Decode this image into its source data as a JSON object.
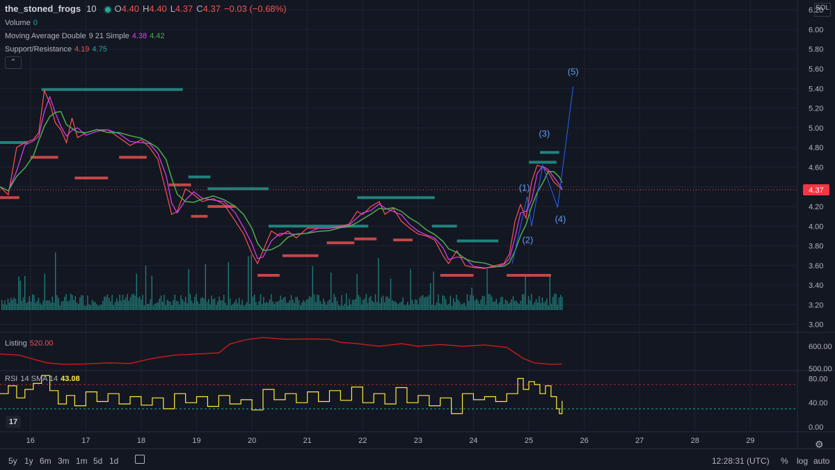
{
  "header": {
    "symbol": "the_stoned_frogs",
    "interval": "10",
    "ohlc": [
      {
        "k": "O",
        "v": "4.40"
      },
      {
        "k": "H",
        "v": "4.40"
      },
      {
        "k": "L",
        "v": "4.37"
      },
      {
        "k": "C",
        "v": "4.37"
      }
    ],
    "change": "−0.03 (−0.68%)",
    "currency": "SOL"
  },
  "indicators": {
    "volume_label": "Volume",
    "volume_value": "0",
    "ma_label": "Moving Average Double",
    "ma_params": "9 21 Simple",
    "ma_value1": "4.38",
    "ma_value2": "4.42",
    "sr_label": "Support/Resistance",
    "sr_value1": "4.19",
    "sr_value2": "4.75",
    "listing_label": "Listing",
    "listing_value": "520.00",
    "rsi_label": "RSI",
    "rsi_params": "14 SMA 14",
    "rsi_value": "43.08"
  },
  "colors": {
    "bg": "#131722",
    "grid": "#1f2330",
    "price": "#ff5252",
    "ma_fast": "#e040fb",
    "ma_slow": "#4caf50",
    "resistance": "#26a69a",
    "support": "#ef5350",
    "volume": "#26a69a",
    "listing": "#b71c1c",
    "rsi": "#ffeb3b",
    "wave": "#2962ff",
    "wave_label": "#5b9cf6",
    "axis_text": "#b2b5be"
  },
  "bottombar": {
    "ranges": [
      "5y",
      "1y",
      "6m",
      "3m",
      "1m",
      "5d",
      "1d"
    ],
    "time": "12:28:31 (UTC)",
    "percent": "%",
    "log": "log",
    "auto": "auto"
  },
  "chart_data": [
    {
      "type": "line",
      "name": "price",
      "x_ticks": [
        "16",
        "17",
        "18",
        "19",
        "20",
        "21",
        "22",
        "23",
        "24",
        "25",
        "26",
        "27",
        "28",
        "29"
      ],
      "x_range": [
        15.45,
        29.85
      ],
      "ylim": [
        2.92,
        6.3
      ],
      "y_ticks": [
        "6.20",
        "6.00",
        "5.80",
        "5.60",
        "5.40",
        "5.20",
        "5.00",
        "4.80",
        "4.60",
        "4.40",
        "4.20",
        "4.00",
        "3.80",
        "3.60",
        "3.40",
        "3.20",
        "3.00"
      ],
      "last_price": "4.37",
      "series": [
        {
          "x": 15.45,
          "y": 4.4
        },
        {
          "x": 15.6,
          "y": 4.32
        },
        {
          "x": 15.75,
          "y": 4.8
        },
        {
          "x": 15.9,
          "y": 4.85
        },
        {
          "x": 16.05,
          "y": 4.88
        },
        {
          "x": 16.15,
          "y": 4.95
        },
        {
          "x": 16.25,
          "y": 5.38
        },
        {
          "x": 16.35,
          "y": 5.25
        },
        {
          "x": 16.45,
          "y": 5.05
        },
        {
          "x": 16.55,
          "y": 4.98
        },
        {
          "x": 16.65,
          "y": 4.85
        },
        {
          "x": 16.75,
          "y": 5.1
        },
        {
          "x": 16.85,
          "y": 4.9
        },
        {
          "x": 17.0,
          "y": 4.95
        },
        {
          "x": 17.2,
          "y": 4.98
        },
        {
          "x": 17.4,
          "y": 4.98
        },
        {
          "x": 17.6,
          "y": 4.9
        },
        {
          "x": 17.8,
          "y": 4.82
        },
        {
          "x": 18.0,
          "y": 4.88
        },
        {
          "x": 18.15,
          "y": 4.8
        },
        {
          "x": 18.3,
          "y": 4.68
        },
        {
          "x": 18.45,
          "y": 4.35
        },
        {
          "x": 18.55,
          "y": 4.12
        },
        {
          "x": 18.65,
          "y": 4.15
        },
        {
          "x": 18.8,
          "y": 4.38
        },
        {
          "x": 18.95,
          "y": 4.32
        },
        {
          "x": 19.1,
          "y": 4.25
        },
        {
          "x": 19.3,
          "y": 4.28
        },
        {
          "x": 19.5,
          "y": 4.22
        },
        {
          "x": 19.7,
          "y": 4.05
        },
        {
          "x": 19.85,
          "y": 3.92
        },
        {
          "x": 20.0,
          "y": 3.72
        },
        {
          "x": 20.1,
          "y": 3.62
        },
        {
          "x": 20.2,
          "y": 3.75
        },
        {
          "x": 20.35,
          "y": 3.95
        },
        {
          "x": 20.5,
          "y": 3.9
        },
        {
          "x": 20.65,
          "y": 3.95
        },
        {
          "x": 20.8,
          "y": 3.88
        },
        {
          "x": 21.0,
          "y": 3.98
        },
        {
          "x": 21.2,
          "y": 3.98
        },
        {
          "x": 21.4,
          "y": 3.98
        },
        {
          "x": 21.6,
          "y": 4.0
        },
        {
          "x": 21.75,
          "y": 4.02
        },
        {
          "x": 21.9,
          "y": 4.15
        },
        {
          "x": 22.0,
          "y": 4.12
        },
        {
          "x": 22.15,
          "y": 4.2
        },
        {
          "x": 22.3,
          "y": 4.25
        },
        {
          "x": 22.4,
          "y": 4.12
        },
        {
          "x": 22.55,
          "y": 4.18
        },
        {
          "x": 22.7,
          "y": 4.05
        },
        {
          "x": 22.85,
          "y": 3.98
        },
        {
          "x": 23.0,
          "y": 3.92
        },
        {
          "x": 23.15,
          "y": 3.9
        },
        {
          "x": 23.3,
          "y": 3.86
        },
        {
          "x": 23.45,
          "y": 3.7
        },
        {
          "x": 23.55,
          "y": 3.62
        },
        {
          "x": 23.7,
          "y": 3.75
        },
        {
          "x": 23.85,
          "y": 3.6
        },
        {
          "x": 24.0,
          "y": 3.58
        },
        {
          "x": 24.2,
          "y": 3.57
        },
        {
          "x": 24.4,
          "y": 3.6
        },
        {
          "x": 24.55,
          "y": 3.62
        },
        {
          "x": 24.65,
          "y": 3.72
        },
        {
          "x": 24.75,
          "y": 4.05
        },
        {
          "x": 24.85,
          "y": 4.22
        },
        {
          "x": 24.95,
          "y": 4.08
        },
        {
          "x": 25.05,
          "y": 4.45
        },
        {
          "x": 25.15,
          "y": 4.62
        },
        {
          "x": 25.25,
          "y": 4.6
        },
        {
          "x": 25.35,
          "y": 4.55
        },
        {
          "x": 25.45,
          "y": 4.45
        },
        {
          "x": 25.55,
          "y": 4.4
        },
        {
          "x": 25.6,
          "y": 4.37
        }
      ],
      "resistance_levels": [
        {
          "x1": 15.45,
          "x2": 15.95,
          "y": 4.85
        },
        {
          "x1": 16.2,
          "x2": 18.75,
          "y": 5.39
        },
        {
          "x1": 19.2,
          "x2": 20.3,
          "y": 4.38
        },
        {
          "x1": 18.85,
          "x2": 19.25,
          "y": 4.5
        },
        {
          "x1": 20.3,
          "x2": 22.1,
          "y": 4.0
        },
        {
          "x1": 21.9,
          "x2": 23.3,
          "y": 4.29
        },
        {
          "x1": 23.25,
          "x2": 23.7,
          "y": 4.0
        },
        {
          "x1": 23.7,
          "x2": 24.45,
          "y": 3.85
        },
        {
          "x1": 25.0,
          "x2": 25.5,
          "y": 4.65
        },
        {
          "x1": 25.2,
          "x2": 25.55,
          "y": 4.75
        }
      ],
      "support_levels": [
        {
          "x1": 15.45,
          "x2": 15.8,
          "y": 4.29
        },
        {
          "x1": 16.0,
          "x2": 16.5,
          "y": 4.7
        },
        {
          "x1": 16.8,
          "x2": 17.4,
          "y": 4.49
        },
        {
          "x1": 17.6,
          "x2": 18.1,
          "y": 4.7
        },
        {
          "x1": 18.5,
          "x2": 18.9,
          "y": 4.42
        },
        {
          "x1": 18.9,
          "x2": 19.2,
          "y": 4.1
        },
        {
          "x1": 19.2,
          "x2": 19.7,
          "y": 4.2
        },
        {
          "x1": 20.1,
          "x2": 20.5,
          "y": 3.5
        },
        {
          "x1": 20.55,
          "x2": 21.2,
          "y": 3.7
        },
        {
          "x1": 21.35,
          "x2": 21.85,
          "y": 3.83
        },
        {
          "x1": 21.85,
          "x2": 22.25,
          "y": 3.87
        },
        {
          "x1": 22.55,
          "x2": 22.9,
          "y": 3.86
        },
        {
          "x1": 23.4,
          "x2": 24.0,
          "y": 3.5
        },
        {
          "x1": 24.6,
          "x2": 25.4,
          "y": 3.5
        }
      ],
      "elliott_wave": {
        "points": [
          {
            "x": 24.7,
            "y": 3.62
          },
          {
            "x": 24.97,
            "y": 4.3
          },
          {
            "x": 25.05,
            "y": 4.0
          },
          {
            "x": 25.25,
            "y": 4.62
          },
          {
            "x": 25.52,
            "y": 4.19
          },
          {
            "x": 25.8,
            "y": 5.42
          }
        ],
        "labels": [
          {
            "text": "(1)",
            "x": 24.92,
            "y": 4.36
          },
          {
            "text": "(2)",
            "x": 24.98,
            "y": 3.83
          },
          {
            "text": "(3)",
            "x": 25.28,
            "y": 4.91
          },
          {
            "text": "(4)",
            "x": 25.57,
            "y": 4.04
          },
          {
            "text": "(5)",
            "x": 25.8,
            "y": 5.54
          }
        ]
      }
    },
    {
      "type": "bar",
      "name": "volume",
      "note": "histogram at base of price pane"
    },
    {
      "type": "line",
      "name": "Listing",
      "y_ticks": [
        "600.00",
        "500.00"
      ],
      "ylim": [
        490,
        660
      ],
      "series": [
        {
          "x": 15.45,
          "y": 565
        },
        {
          "x": 15.8,
          "y": 560
        },
        {
          "x": 16.0,
          "y": 545
        },
        {
          "x": 16.3,
          "y": 525
        },
        {
          "x": 16.6,
          "y": 518
        },
        {
          "x": 17.0,
          "y": 520
        },
        {
          "x": 17.4,
          "y": 525
        },
        {
          "x": 17.8,
          "y": 522
        },
        {
          "x": 18.2,
          "y": 545
        },
        {
          "x": 18.6,
          "y": 560
        },
        {
          "x": 19.0,
          "y": 565
        },
        {
          "x": 19.4,
          "y": 570
        },
        {
          "x": 19.6,
          "y": 610
        },
        {
          "x": 19.9,
          "y": 630
        },
        {
          "x": 20.2,
          "y": 640
        },
        {
          "x": 20.6,
          "y": 632
        },
        {
          "x": 21.0,
          "y": 633
        },
        {
          "x": 21.4,
          "y": 632
        },
        {
          "x": 21.6,
          "y": 618
        },
        {
          "x": 21.9,
          "y": 612
        },
        {
          "x": 22.3,
          "y": 600
        },
        {
          "x": 22.7,
          "y": 612
        },
        {
          "x": 23.0,
          "y": 600
        },
        {
          "x": 23.4,
          "y": 608
        },
        {
          "x": 23.8,
          "y": 600
        },
        {
          "x": 24.2,
          "y": 606
        },
        {
          "x": 24.6,
          "y": 595
        },
        {
          "x": 24.9,
          "y": 545
        },
        {
          "x": 25.1,
          "y": 525
        },
        {
          "x": 25.4,
          "y": 518
        },
        {
          "x": 25.6,
          "y": 520
        }
      ]
    },
    {
      "type": "line",
      "name": "RSI",
      "y_ticks": [
        "80.00",
        "40.00",
        "0.00"
      ],
      "ylim": [
        -8,
        92
      ],
      "bands": [
        70,
        30
      ],
      "series": [
        {
          "x": 15.45,
          "y": 55
        },
        {
          "x": 15.6,
          "y": 68
        },
        {
          "x": 15.75,
          "y": 48
        },
        {
          "x": 15.9,
          "y": 62
        },
        {
          "x": 16.05,
          "y": 72
        },
        {
          "x": 16.2,
          "y": 85
        },
        {
          "x": 16.35,
          "y": 60
        },
        {
          "x": 16.5,
          "y": 38
        },
        {
          "x": 16.65,
          "y": 52
        },
        {
          "x": 16.8,
          "y": 35
        },
        {
          "x": 17.0,
          "y": 58
        },
        {
          "x": 17.2,
          "y": 42
        },
        {
          "x": 17.4,
          "y": 55
        },
        {
          "x": 17.6,
          "y": 38
        },
        {
          "x": 17.8,
          "y": 50
        },
        {
          "x": 18.0,
          "y": 36
        },
        {
          "x": 18.2,
          "y": 48
        },
        {
          "x": 18.4,
          "y": 30
        },
        {
          "x": 18.6,
          "y": 55
        },
        {
          "x": 18.8,
          "y": 40
        },
        {
          "x": 19.0,
          "y": 50
        },
        {
          "x": 19.2,
          "y": 34
        },
        {
          "x": 19.4,
          "y": 52
        },
        {
          "x": 19.6,
          "y": 38
        },
        {
          "x": 19.8,
          "y": 45
        },
        {
          "x": 20.0,
          "y": 28
        },
        {
          "x": 20.2,
          "y": 62
        },
        {
          "x": 20.4,
          "y": 45
        },
        {
          "x": 20.6,
          "y": 55
        },
        {
          "x": 20.8,
          "y": 40
        },
        {
          "x": 21.0,
          "y": 58
        },
        {
          "x": 21.2,
          "y": 42
        },
        {
          "x": 21.4,
          "y": 60
        },
        {
          "x": 21.6,
          "y": 44
        },
        {
          "x": 21.8,
          "y": 66
        },
        {
          "x": 22.0,
          "y": 40
        },
        {
          "x": 22.2,
          "y": 55
        },
        {
          "x": 22.4,
          "y": 38
        },
        {
          "x": 22.6,
          "y": 65
        },
        {
          "x": 22.8,
          "y": 40
        },
        {
          "x": 23.0,
          "y": 52
        },
        {
          "x": 23.2,
          "y": 35
        },
        {
          "x": 23.4,
          "y": 48
        },
        {
          "x": 23.6,
          "y": 22
        },
        {
          "x": 23.8,
          "y": 55
        },
        {
          "x": 24.0,
          "y": 45
        },
        {
          "x": 24.2,
          "y": 50
        },
        {
          "x": 24.4,
          "y": 42
        },
        {
          "x": 24.6,
          "y": 55
        },
        {
          "x": 24.8,
          "y": 80
        },
        {
          "x": 24.9,
          "y": 62
        },
        {
          "x": 25.0,
          "y": 75
        },
        {
          "x": 25.1,
          "y": 70
        },
        {
          "x": 25.2,
          "y": 55
        },
        {
          "x": 25.3,
          "y": 68
        },
        {
          "x": 25.4,
          "y": 50
        },
        {
          "x": 25.5,
          "y": 30
        },
        {
          "x": 25.55,
          "y": 22
        },
        {
          "x": 25.6,
          "y": 43
        }
      ]
    }
  ]
}
